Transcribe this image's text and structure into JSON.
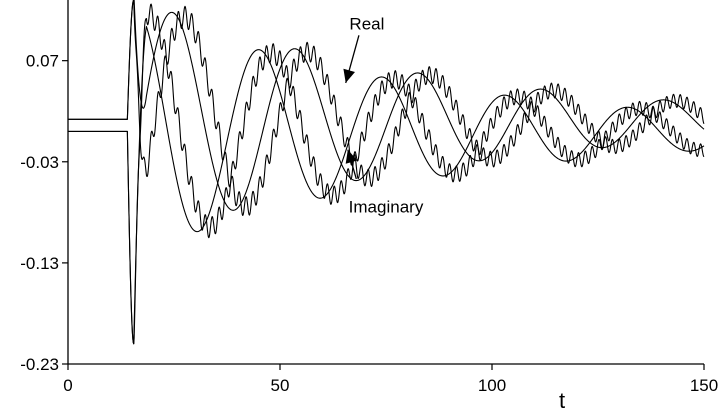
{
  "chart_data": {
    "type": "line",
    "title": "",
    "xlabel": "t",
    "ylabel": "",
    "xlim": [
      0,
      150
    ],
    "ylim": [
      -0.23,
      0.13
    ],
    "x_ticks": [
      0,
      50,
      100,
      150
    ],
    "x_tick_labels": [
      "0",
      "50",
      "100",
      "150"
    ],
    "y_ticks": [
      0.07,
      -0.03,
      -0.13,
      -0.23
    ],
    "y_tick_labels": [
      "0.07",
      "-0.03",
      "-0.13",
      "-0.23"
    ],
    "grid": false,
    "legend": "none",
    "line_color": "#000000",
    "annotations": [
      {
        "text": "Real",
        "label_at": [
          70.5,
          0.101
        ],
        "arrow_to": [
          65.5,
          0.048
        ]
      },
      {
        "text": "Imaginary",
        "label_at": [
          75,
          -0.08
        ],
        "arrow_from": [
          68,
          -0.047
        ],
        "arrow_to": [
          66,
          -0.018
        ]
      }
    ],
    "series": [
      {
        "component": "real-smooth",
        "t0": 14.0,
        "baseline": 0.012,
        "offset": 0.01,
        "spike_peak": 0.13,
        "onset": 17.5,
        "period": 29.0,
        "amplitude": 0.125,
        "decay": 0.014,
        "phase_shift": 0.0,
        "ripple": 0.0
      },
      {
        "component": "real-oscillating",
        "t0": 14.0,
        "baseline": 0.012,
        "offset": 0.01,
        "spike_peak": 0.13,
        "onset": 17.5,
        "period": 29.0,
        "amplitude": 0.125,
        "decay": 0.014,
        "phase_shift": 3.0,
        "ripple": 0.011
      },
      {
        "component": "imaginary-smooth",
        "t0": 14.0,
        "baseline": 0.0,
        "offset": 0.0,
        "spike_peak": -0.21,
        "onset": 16.0,
        "period": 29.0,
        "amplitude": 0.125,
        "decay": 0.014,
        "phase_shift": -7.0,
        "ripple": 0.0
      },
      {
        "component": "imaginary-oscillating",
        "t0": 14.0,
        "baseline": 0.0,
        "offset": 0.0,
        "spike_peak": -0.21,
        "onset": 16.0,
        "period": 29.0,
        "amplitude": 0.125,
        "decay": 0.014,
        "phase_shift": -4.0,
        "ripple": 0.011
      }
    ]
  }
}
